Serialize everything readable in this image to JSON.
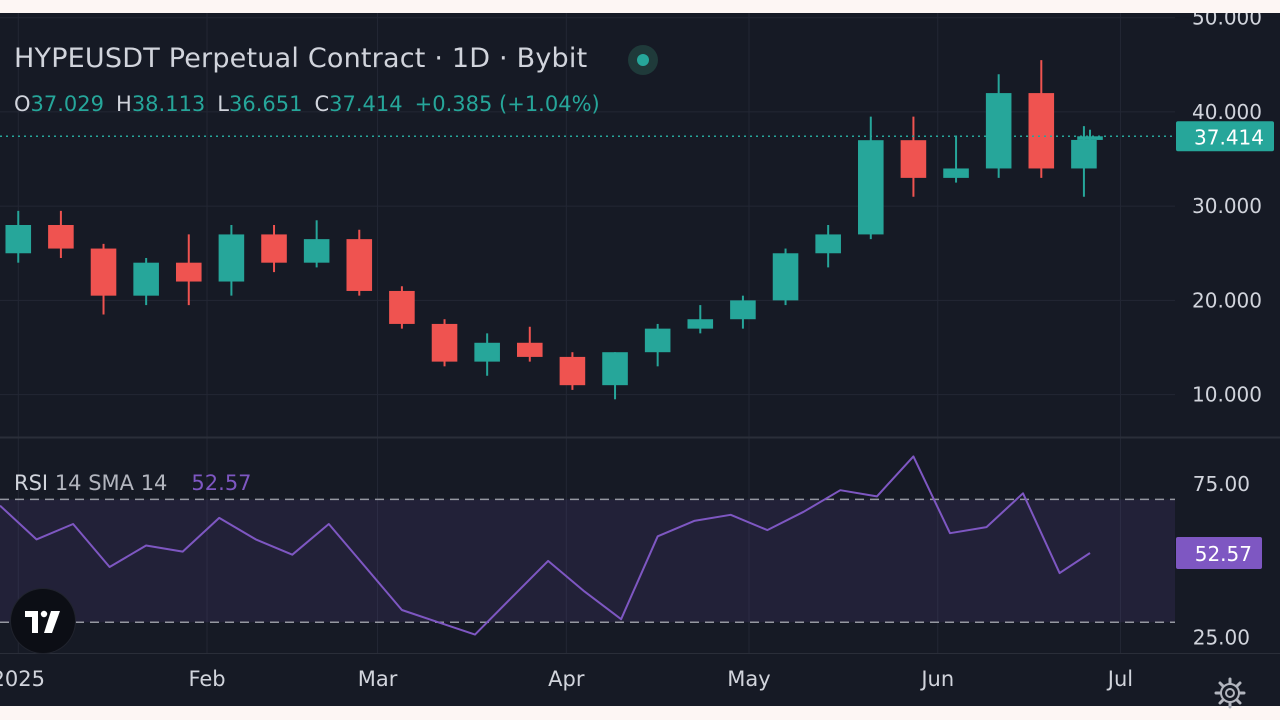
{
  "header": {
    "title": "HYPEUSDT Perpetual Contract · 1D · Bybit",
    "ohlc": {
      "o_label": "O",
      "o_value": "37.029",
      "h_label": "H",
      "h_value": "38.113",
      "l_label": "L",
      "l_value": "36.651",
      "c_label": "C",
      "c_value": "37.414",
      "change": "+0.385 (+1.04%)"
    }
  },
  "rsi_legend": {
    "name": "RSI",
    "params": "14 SMA 14",
    "value": "52.57"
  },
  "icons": {
    "logo": "tradingview-logo-icon",
    "settings": "gear-icon",
    "status": "live-status-dot-icon"
  },
  "colors": {
    "up": "#26a69a",
    "down": "#ef5350",
    "rsi": "#7e57c2",
    "background": "#161a25",
    "text": "#d1d4dc"
  },
  "chart_data": [
    {
      "type": "candlestick",
      "title": "HYPEUSDT Perpetual Contract · 1D · Bybit",
      "x_tick_labels": [
        "2025",
        "Feb",
        "Mar",
        "Apr",
        "May",
        "Jun",
        "Jul"
      ],
      "x_ticks": [
        "2025-01-01",
        "2025-02-01",
        "2025-03-01",
        "2025-04-01",
        "2025-05-01",
        "2025-06-01",
        "2025-07-01"
      ],
      "x_range": [
        "2024-12-29",
        "2025-07-07"
      ],
      "y_ticks": [
        10,
        20,
        30,
        40,
        50
      ],
      "y_tick_labels": [
        "10.000",
        "20.000",
        "30.000",
        "40.000",
        "50.000"
      ],
      "ylim": [
        5.5,
        50.5
      ],
      "last_price": 37.414,
      "last_price_label": "37.414",
      "grid": true,
      "series": [
        {
          "x": [
            "2024-12-29",
            "2025-01-05",
            "2025-01-12",
            "2025-01-19",
            "2025-01-26",
            "2025-02-02",
            "2025-02-09",
            "2025-02-16",
            "2025-02-23",
            "2025-03-02",
            "2025-03-09",
            "2025-03-16",
            "2025-03-23",
            "2025-03-30",
            "2025-04-06",
            "2025-04-13",
            "2025-04-20",
            "2025-04-27",
            "2025-05-04",
            "2025-05-11",
            "2025-05-18",
            "2025-05-25",
            "2025-06-01",
            "2025-06-08",
            "2025-06-15",
            "2025-06-22",
            "2025-06-26"
          ],
          "open": [
            25.0,
            28.0,
            25.5,
            20.5,
            24.0,
            22.0,
            27.0,
            24.0,
            26.5,
            21.0,
            17.5,
            13.5,
            15.5,
            14.0,
            11.0,
            14.5,
            17.0,
            18.0,
            20.0,
            25.0,
            27.0,
            37.0,
            33.0,
            34.0,
            42.0,
            34.0,
            37.029
          ],
          "high": [
            29.5,
            29.5,
            26.0,
            24.5,
            27.0,
            28.0,
            28.0,
            28.5,
            27.5,
            21.5,
            18.0,
            16.5,
            17.2,
            14.5,
            14.5,
            17.5,
            19.5,
            20.5,
            25.5,
            28.0,
            39.5,
            39.5,
            37.5,
            44.0,
            45.5,
            38.5,
            38.113
          ],
          "low": [
            24.0,
            24.5,
            18.5,
            19.5,
            19.5,
            20.5,
            23.0,
            23.5,
            20.5,
            17.0,
            13.0,
            12.0,
            13.5,
            10.5,
            9.5,
            13.0,
            16.5,
            17.0,
            19.5,
            23.5,
            26.5,
            31.0,
            32.5,
            33.0,
            33.0,
            31.0,
            36.651
          ],
          "close": [
            28.0,
            25.5,
            20.5,
            24.0,
            22.0,
            27.0,
            24.0,
            26.5,
            21.0,
            17.5,
            13.5,
            15.5,
            14.0,
            11.0,
            14.5,
            17.0,
            18.0,
            20.0,
            25.0,
            27.0,
            37.0,
            33.0,
            34.0,
            42.0,
            34.0,
            37.029,
            37.414
          ]
        }
      ]
    },
    {
      "type": "line",
      "title": "RSI 14 SMA 14",
      "y_ticks": [
        25,
        75
      ],
      "y_tick_labels": [
        "25.00",
        "75.00"
      ],
      "ylim": [
        20,
        90
      ],
      "bands": [
        30,
        70
      ],
      "grid": true,
      "last_value": 52.57,
      "last_value_label": "52.57",
      "series": [
        {
          "x": [
            "2024-12-29",
            "2025-01-04",
            "2025-01-10",
            "2025-01-16",
            "2025-01-22",
            "2025-01-28",
            "2025-02-03",
            "2025-02-09",
            "2025-02-15",
            "2025-02-21",
            "2025-02-27",
            "2025-03-05",
            "2025-03-11",
            "2025-03-17",
            "2025-03-23",
            "2025-03-29",
            "2025-04-04",
            "2025-04-10",
            "2025-04-16",
            "2025-04-22",
            "2025-04-28",
            "2025-05-04",
            "2025-05-10",
            "2025-05-16",
            "2025-05-22",
            "2025-05-28",
            "2025-06-03",
            "2025-06-09",
            "2025-06-15",
            "2025-06-21",
            "2025-06-26"
          ],
          "values": [
            68,
            57,
            62,
            48,
            55,
            53,
            64,
            57,
            52,
            62,
            48,
            34,
            30,
            26,
            38,
            50,
            40,
            31,
            58,
            63,
            65,
            60,
            66,
            73,
            71,
            84,
            59,
            61,
            72,
            46,
            52.57
          ]
        }
      ]
    }
  ]
}
